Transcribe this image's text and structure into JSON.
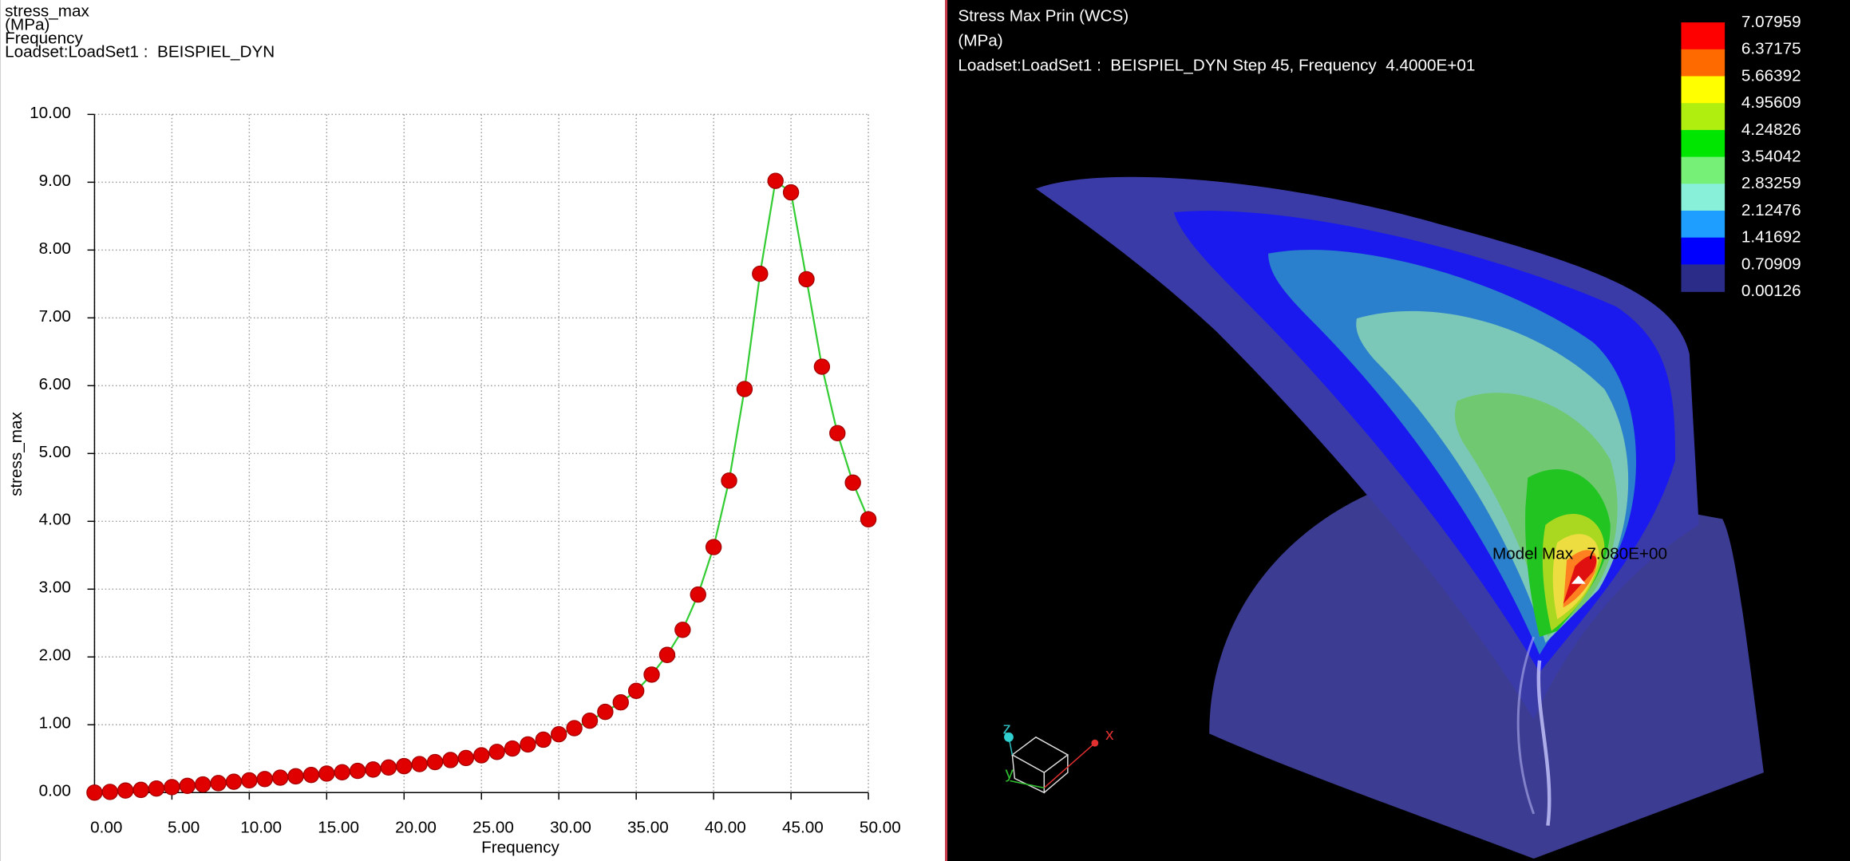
{
  "chart_data": {
    "type": "line",
    "header": [
      "stress_max",
      "(MPa)",
      "Frequency",
      "Loadset:LoadSet1 :  BEISPIEL_DYN"
    ],
    "xlabel": "Frequency",
    "ylabel": "stress_max",
    "x": [
      0,
      1,
      2,
      3,
      4,
      5,
      6,
      7,
      8,
      9,
      10,
      11,
      12,
      13,
      14,
      15,
      16,
      17,
      18,
      19,
      20,
      21,
      22,
      23,
      24,
      25,
      26,
      27,
      28,
      29,
      30,
      31,
      32,
      33,
      34,
      35,
      36,
      37,
      38,
      39,
      40,
      41,
      42,
      43,
      44,
      45,
      46,
      47,
      48,
      49,
      50
    ],
    "values": [
      0,
      0.01,
      0.03,
      0.04,
      0.06,
      0.08,
      0.1,
      0.12,
      0.14,
      0.16,
      0.18,
      0.2,
      0.22,
      0.24,
      0.26,
      0.28,
      0.3,
      0.32,
      0.34,
      0.37,
      0.39,
      0.42,
      0.45,
      0.48,
      0.51,
      0.55,
      0.6,
      0.65,
      0.71,
      0.78,
      0.86,
      0.95,
      1.06,
      1.19,
      1.33,
      1.5,
      1.74,
      2.03,
      2.4,
      2.92,
      3.62,
      4.6,
      5.95,
      7.65,
      9.02,
      8.85,
      7.57,
      6.28,
      5.3,
      4.57,
      4.03
    ],
    "color": "#33cc33",
    "marker_color": "#e00000",
    "xlim": [
      0,
      50
    ],
    "xticks": [
      {
        "value": 0,
        "label": "0.00"
      },
      {
        "value": 5,
        "label": "5.00"
      },
      {
        "value": 10,
        "label": "10.00"
      },
      {
        "value": 15,
        "label": "15.00"
      },
      {
        "value": 20,
        "label": "20.00"
      },
      {
        "value": 25,
        "label": "25.00"
      },
      {
        "value": 30,
        "label": "30.00"
      },
      {
        "value": 35,
        "label": "35.00"
      },
      {
        "value": 40,
        "label": "40.00"
      },
      {
        "value": 45,
        "label": "45.00"
      },
      {
        "value": 50,
        "label": "50.00"
      }
    ],
    "ylim": [
      0,
      10
    ],
    "yticks": [
      {
        "value": 0,
        "label": "0.00"
      },
      {
        "value": 1,
        "label": "1.00"
      },
      {
        "value": 2,
        "label": "2.00"
      },
      {
        "value": 3,
        "label": "3.00"
      },
      {
        "value": 4,
        "label": "4.00"
      },
      {
        "value": 5,
        "label": "5.00"
      },
      {
        "value": 6,
        "label": "6.00"
      },
      {
        "value": 7,
        "label": "7.00"
      },
      {
        "value": 8,
        "label": "8.00"
      },
      {
        "value": 9,
        "label": "9.00"
      },
      {
        "value": 10,
        "label": "10.00"
      }
    ],
    "grid": true
  },
  "viewer": {
    "title": [
      "Stress Max Prin (WCS)",
      "(MPa)",
      "Loadset:LoadSet1 :  BEISPIEL_DYN Step 45, Frequency  4.4000E+01"
    ],
    "legend_colors": [
      "#ff0000",
      "#ff6a00",
      "#ffff00",
      "#b0ee10",
      "#00e600",
      "#77f077",
      "#88f0d8",
      "#1e9fff",
      "#0000ff",
      "#2b2b88"
    ],
    "legend_labels": [
      "7.07959",
      "6.37175",
      "5.66392",
      "4.95609",
      "4.24826",
      "3.54042",
      "2.83259",
      "2.12476",
      "1.41692",
      "0.70909",
      "0.00126"
    ],
    "annotation": "Model Max   7.080E+00",
    "triad": [
      "x",
      "y",
      "z"
    ]
  }
}
